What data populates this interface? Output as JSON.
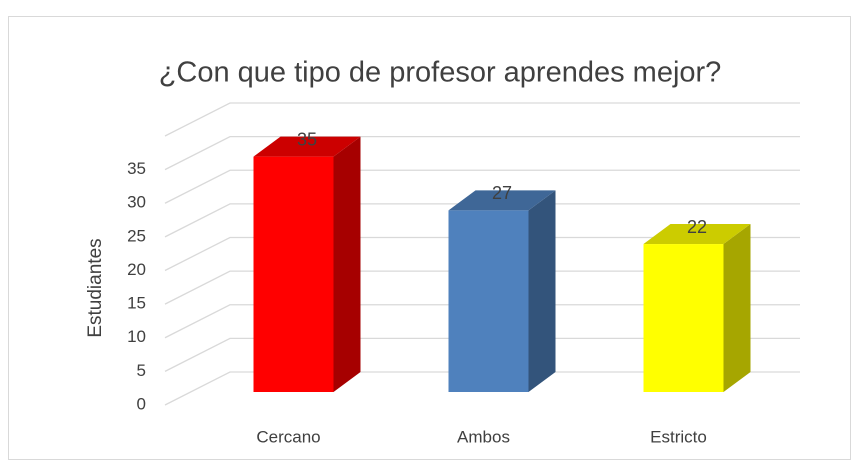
{
  "chart_data": {
    "type": "bar3d",
    "title": "¿Con que tipo de profesor aprendes mejor?",
    "y_label": "Estudiantes",
    "categories": [
      "Cercano",
      "Ambos",
      "Estricto"
    ],
    "values": [
      35,
      27,
      22
    ],
    "colors": [
      "#ff0000",
      "#4f81bd",
      "#ffff00"
    ],
    "ylim": [
      0,
      40
    ],
    "yticks": [
      0,
      5,
      10,
      15,
      20,
      25,
      30,
      35
    ],
    "grid": true
  }
}
